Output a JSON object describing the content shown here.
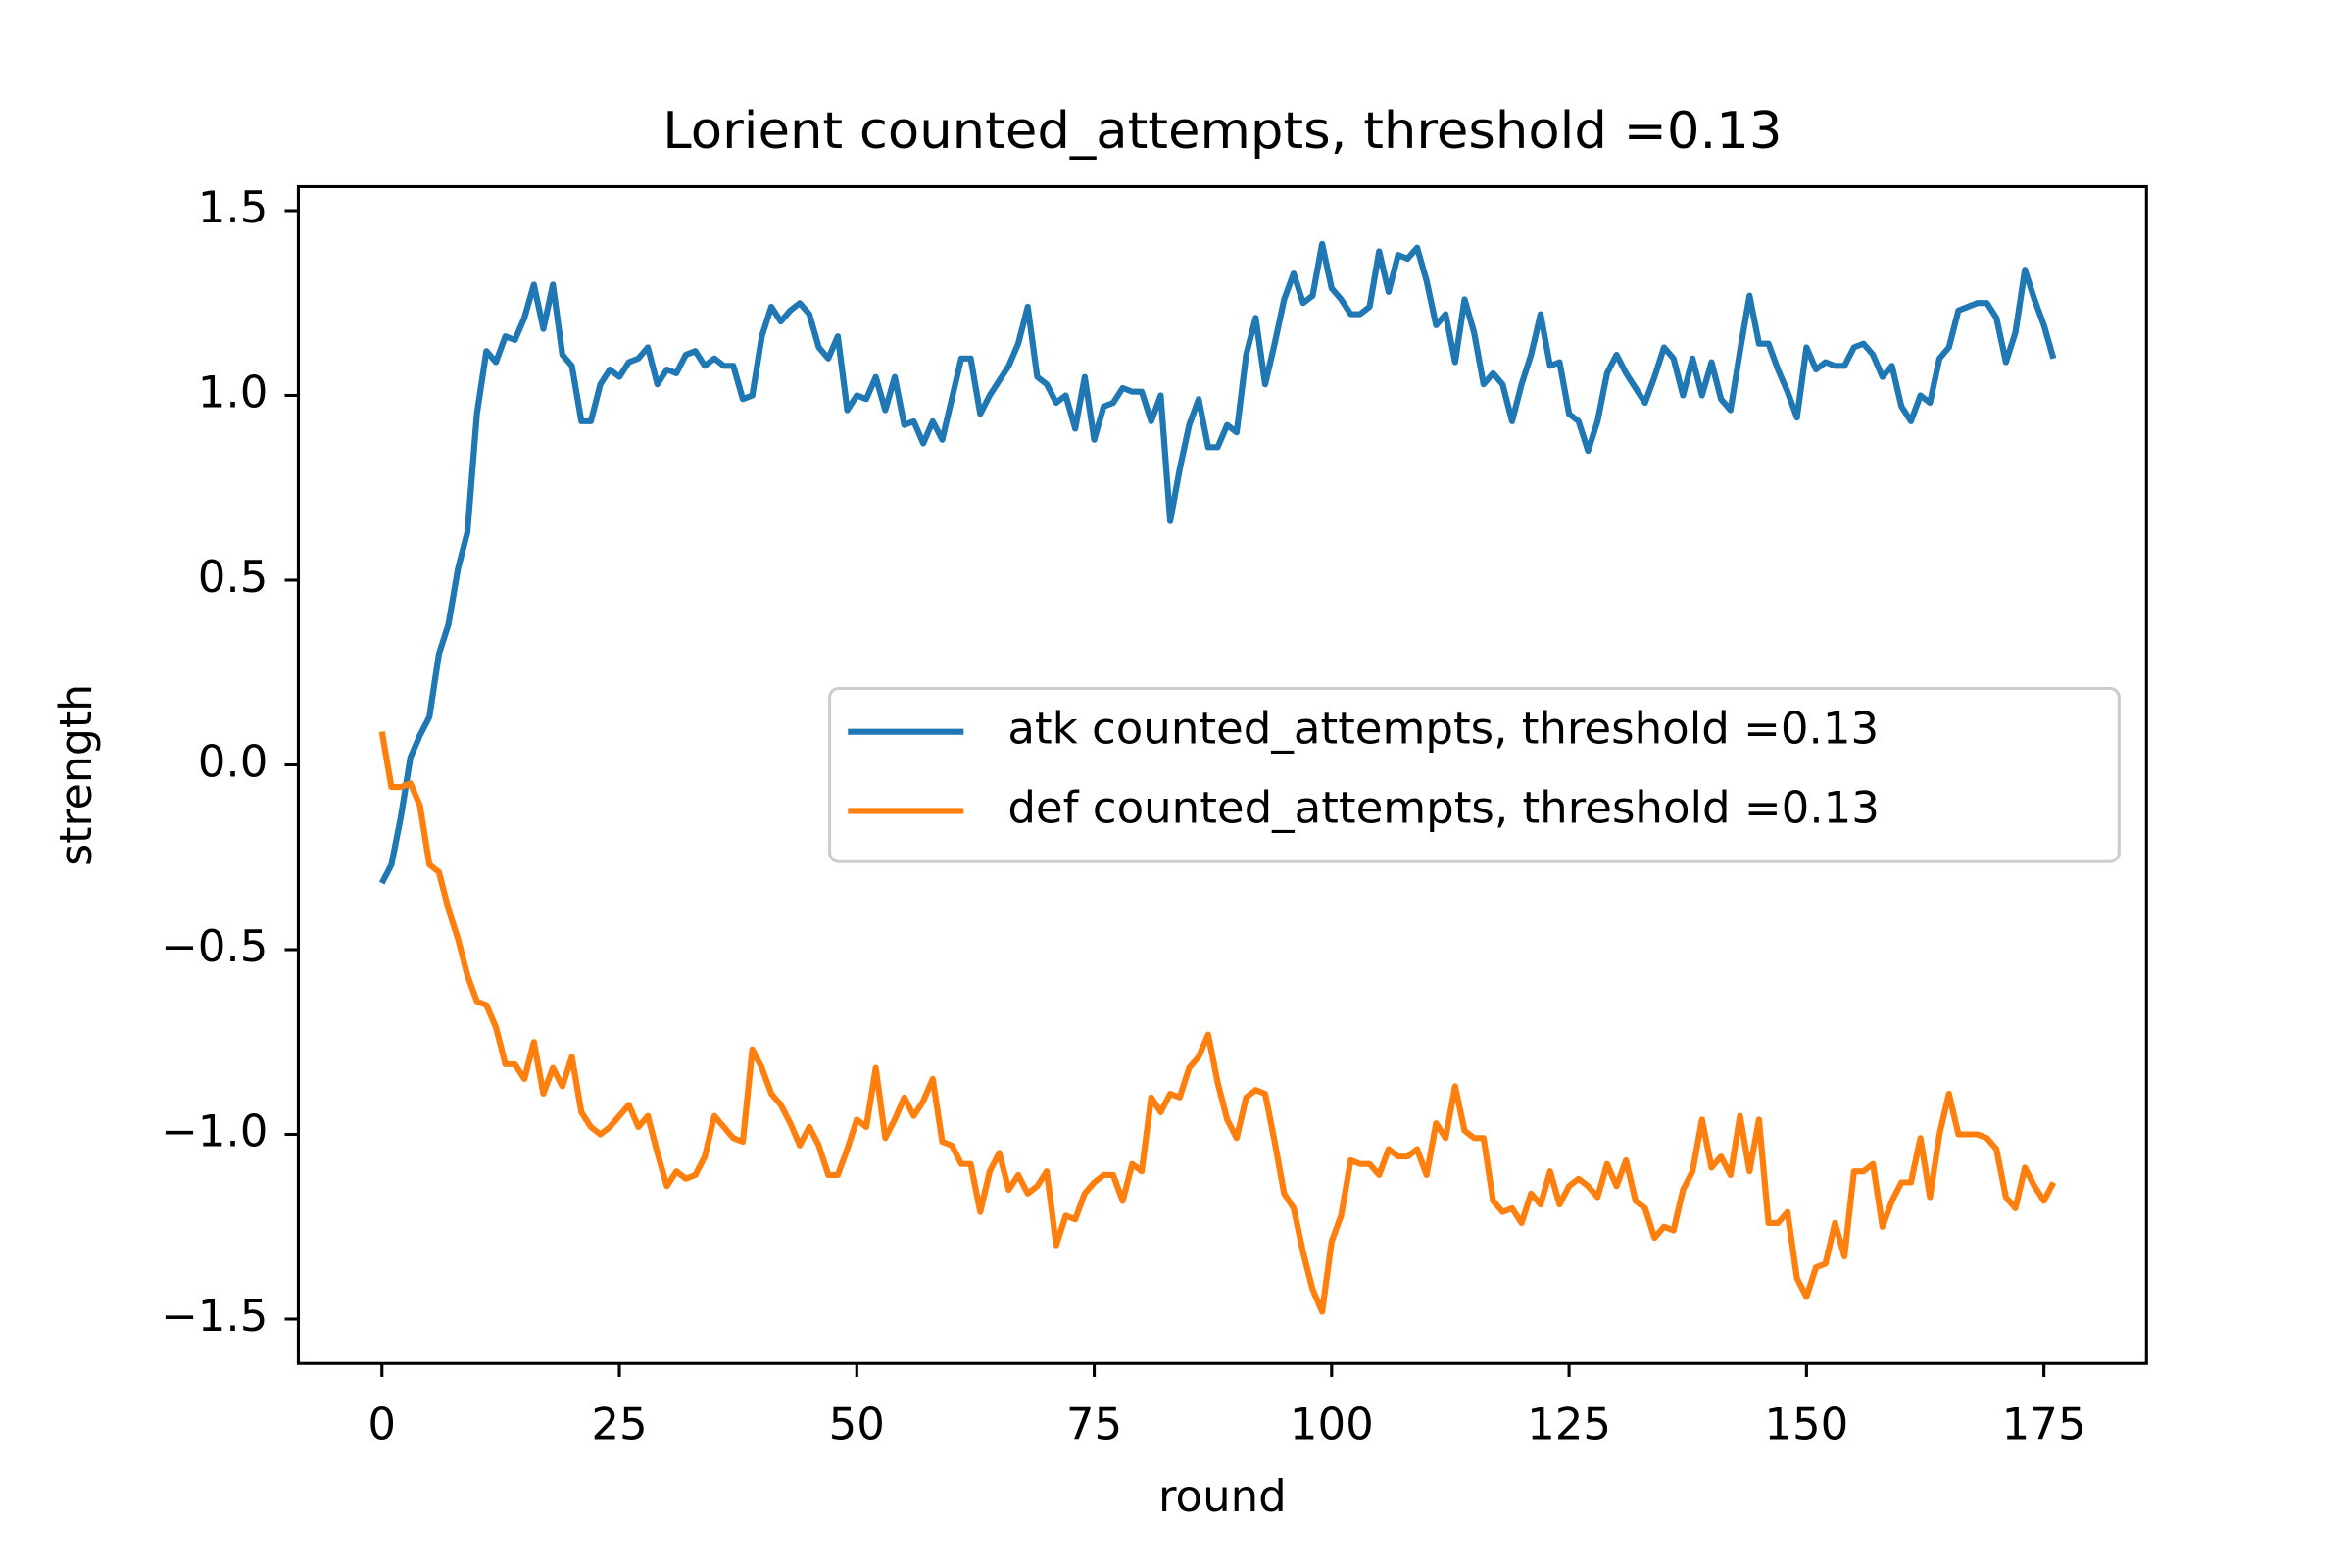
{
  "chart_data": {
    "type": "line",
    "title": "Lorient counted_attempts, threshold =0.13",
    "xlabel": "round",
    "ylabel": "strength",
    "x": [
      0,
      1,
      2,
      3,
      4,
      5,
      6,
      7,
      8,
      9,
      10,
      11,
      12,
      13,
      14,
      15,
      16,
      17,
      18,
      19,
      20,
      21,
      22,
      23,
      24,
      25,
      26,
      27,
      28,
      29,
      30,
      31,
      32,
      33,
      34,
      35,
      36,
      37,
      38,
      39,
      40,
      41,
      42,
      43,
      44,
      45,
      46,
      47,
      48,
      49,
      50,
      51,
      52,
      53,
      54,
      55,
      56,
      57,
      58,
      59,
      60,
      61,
      62,
      63,
      64,
      65,
      66,
      67,
      68,
      69,
      70,
      71,
      72,
      73,
      74,
      75,
      76,
      77,
      78,
      79,
      80,
      81,
      82,
      83,
      84,
      85,
      86,
      87,
      88,
      89,
      90,
      91,
      92,
      93,
      94,
      95,
      96,
      97,
      98,
      99,
      100,
      101,
      102,
      103,
      104,
      105,
      106,
      107,
      108,
      109,
      110,
      111,
      112,
      113,
      114,
      115,
      116,
      117,
      118,
      119,
      120,
      121,
      122,
      123,
      124,
      125,
      126,
      127,
      128,
      129,
      130,
      131,
      132,
      133,
      134,
      135,
      136,
      137,
      138,
      139,
      140,
      141,
      142,
      143,
      144,
      145,
      146,
      147,
      148,
      149,
      150,
      151,
      152,
      153,
      154,
      155,
      156,
      157,
      158,
      159,
      160,
      161,
      162,
      163,
      164,
      165,
      166,
      167,
      168,
      169,
      170,
      171,
      172,
      173,
      174,
      175,
      176
    ],
    "series": [
      {
        "name": "atk counted_attempts, threshold =0.13",
        "color": "#1f77b4",
        "values": [
          -0.32,
          -0.27,
          -0.14,
          0.02,
          0.08,
          0.13,
          0.3,
          0.38,
          0.53,
          0.63,
          0.95,
          1.12,
          1.09,
          1.16,
          1.15,
          1.21,
          1.3,
          1.18,
          1.3,
          1.11,
          1.08,
          0.93,
          0.93,
          1.03,
          1.07,
          1.05,
          1.09,
          1.1,
          1.13,
          1.03,
          1.07,
          1.06,
          1.11,
          1.12,
          1.08,
          1.1,
          1.08,
          1.08,
          0.99,
          1.0,
          1.16,
          1.24,
          1.2,
          1.23,
          1.25,
          1.22,
          1.13,
          1.1,
          1.16,
          0.96,
          1.0,
          0.99,
          1.05,
          0.96,
          1.05,
          0.92,
          0.93,
          0.87,
          0.93,
          0.88,
          0.99,
          1.1,
          1.1,
          0.95,
          1.0,
          1.04,
          1.08,
          1.14,
          1.24,
          1.05,
          1.03,
          0.98,
          1.0,
          0.91,
          1.05,
          0.88,
          0.97,
          0.98,
          1.02,
          1.01,
          1.01,
          0.93,
          1.0,
          0.66,
          0.8,
          0.92,
          0.99,
          0.86,
          0.86,
          0.92,
          0.9,
          1.11,
          1.21,
          1.03,
          1.14,
          1.26,
          1.33,
          1.25,
          1.27,
          1.41,
          1.29,
          1.26,
          1.22,
          1.22,
          1.24,
          1.39,
          1.28,
          1.38,
          1.37,
          1.4,
          1.31,
          1.19,
          1.22,
          1.09,
          1.26,
          1.17,
          1.03,
          1.06,
          1.03,
          0.93,
          1.03,
          1.11,
          1.22,
          1.08,
          1.09,
          0.95,
          0.93,
          0.85,
          0.93,
          1.06,
          1.11,
          1.06,
          1.02,
          0.98,
          1.05,
          1.13,
          1.1,
          1.0,
          1.1,
          1.0,
          1.09,
          0.99,
          0.96,
          1.12,
          1.27,
          1.14,
          1.14,
          1.07,
          1.01,
          0.94,
          1.13,
          1.07,
          1.09,
          1.08,
          1.08,
          1.13,
          1.14,
          1.11,
          1.05,
          1.08,
          0.97,
          0.93,
          1.0,
          0.98,
          1.1,
          1.13,
          1.23,
          1.24,
          1.25,
          1.25,
          1.21,
          1.09,
          1.17,
          1.34,
          1.26,
          1.19,
          1.1
        ]
      },
      {
        "name": "def counted_attempts, threshold =0.13",
        "color": "#ff7f0e",
        "values": [
          0.09,
          -0.06,
          -0.06,
          -0.05,
          -0.11,
          -0.27,
          -0.29,
          -0.39,
          -0.47,
          -0.57,
          -0.64,
          -0.65,
          -0.71,
          -0.81,
          -0.81,
          -0.85,
          -0.75,
          -0.89,
          -0.82,
          -0.87,
          -0.79,
          -0.94,
          -0.98,
          -1.0,
          -0.98,
          -0.95,
          -0.92,
          -0.98,
          -0.95,
          -1.05,
          -1.14,
          -1.1,
          -1.12,
          -1.11,
          -1.06,
          -0.95,
          -0.98,
          -1.01,
          -1.02,
          -0.77,
          -0.82,
          -0.89,
          -0.92,
          -0.97,
          -1.03,
          -0.98,
          -1.03,
          -1.11,
          -1.11,
          -1.04,
          -0.96,
          -0.98,
          -0.82,
          -1.01,
          -0.96,
          -0.9,
          -0.95,
          -0.91,
          -0.85,
          -1.02,
          -1.03,
          -1.08,
          -1.08,
          -1.21,
          -1.1,
          -1.05,
          -1.15,
          -1.11,
          -1.16,
          -1.14,
          -1.1,
          -1.3,
          -1.22,
          -1.23,
          -1.16,
          -1.13,
          -1.11,
          -1.11,
          -1.18,
          -1.08,
          -1.1,
          -0.9,
          -0.94,
          -0.89,
          -0.9,
          -0.82,
          -0.79,
          -0.73,
          -0.86,
          -0.96,
          -1.01,
          -0.9,
          -0.88,
          -0.89,
          -1.02,
          -1.16,
          -1.2,
          -1.32,
          -1.42,
          -1.48,
          -1.29,
          -1.22,
          -1.07,
          -1.08,
          -1.08,
          -1.11,
          -1.04,
          -1.06,
          -1.06,
          -1.04,
          -1.11,
          -0.97,
          -1.01,
          -0.87,
          -0.99,
          -1.01,
          -1.01,
          -1.18,
          -1.21,
          -1.2,
          -1.24,
          -1.16,
          -1.19,
          -1.1,
          -1.19,
          -1.14,
          -1.12,
          -1.14,
          -1.17,
          -1.08,
          -1.14,
          -1.07,
          -1.18,
          -1.2,
          -1.28,
          -1.25,
          -1.26,
          -1.15,
          -1.1,
          -0.96,
          -1.09,
          -1.06,
          -1.11,
          -0.95,
          -1.1,
          -0.96,
          -1.24,
          -1.24,
          -1.21,
          -1.39,
          -1.44,
          -1.36,
          -1.35,
          -1.24,
          -1.33,
          -1.1,
          -1.1,
          -1.08,
          -1.25,
          -1.18,
          -1.13,
          -1.13,
          -1.01,
          -1.17,
          -1.0,
          -0.89,
          -1.0,
          -1.0,
          -1.0,
          -1.01,
          -1.04,
          -1.17,
          -1.2,
          -1.09,
          -1.14,
          -1.18,
          -1.13
        ]
      }
    ],
    "xlim": [
      -8.8,
      185.8
    ],
    "ylim": [
      -1.62,
      1.565
    ],
    "xticks": [
      0,
      25,
      50,
      75,
      100,
      125,
      150,
      175
    ],
    "yticks": [
      {
        "value": -1.5,
        "label": "−1.5"
      },
      {
        "value": -1.0,
        "label": "−1.0"
      },
      {
        "value": -0.5,
        "label": "−0.5"
      },
      {
        "value": 0.0,
        "label": "0.0"
      },
      0.5,
      {
        "value": 1.0,
        "label": "1.0"
      },
      1.5
    ],
    "grid": false,
    "legend": "center right"
  }
}
